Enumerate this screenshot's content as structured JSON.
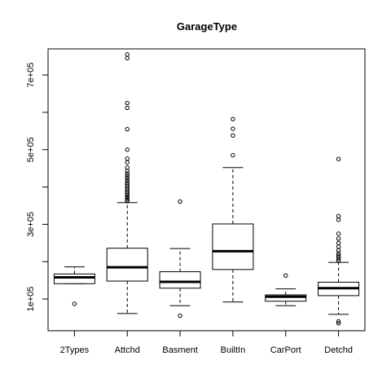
{
  "chart_data": {
    "type": "boxplot",
    "title": "GarageType",
    "xlabel": "",
    "ylabel": "",
    "ylim": [
      15000,
      770000
    ],
    "yticks": [
      {
        "value": 100000,
        "label": "1e+05"
      },
      {
        "value": 300000,
        "label": "3e+05"
      },
      {
        "value": 500000,
        "label": "5e+05"
      },
      {
        "value": 700000,
        "label": "7e+05"
      }
    ],
    "yminor_ticks": [
      200000,
      400000,
      600000
    ],
    "categories": [
      "2Types",
      "Attchd",
      "Basment",
      "BuiltIn",
      "CarPort",
      "Detchd"
    ],
    "boxes": [
      {
        "name": "2Types",
        "whisker_low": 141000,
        "q1": 141000,
        "median": 158000,
        "q3": 167000,
        "whisker_high": 186000,
        "outliers": [
          87000
        ]
      },
      {
        "name": "Attchd",
        "whisker_low": 61000,
        "q1": 148000,
        "median": 185000,
        "q3": 236000,
        "whisker_high": 358000,
        "outliers": [
          362000,
          366000,
          370000,
          374000,
          378000,
          382000,
          387000,
          392000,
          397000,
          402000,
          407000,
          412000,
          418000,
          424000,
          430000,
          436000,
          443000,
          452000,
          466000,
          476000,
          500000,
          555000,
          612000,
          625000,
          745000,
          755000
        ]
      },
      {
        "name": "Basment",
        "whisker_low": 82000,
        "q1": 129000,
        "median": 146000,
        "q3": 173000,
        "whisker_high": 235000,
        "outliers": [
          55000,
          361000
        ]
      },
      {
        "name": "BuiltIn",
        "whisker_low": 92000,
        "q1": 179000,
        "median": 228000,
        "q3": 301000,
        "whisker_high": 452000,
        "outliers": [
          485000,
          538000,
          556000,
          582000
        ]
      },
      {
        "name": "CarPort",
        "whisker_low": 82000,
        "q1": 94000,
        "median": 106000,
        "q3": 111000,
        "whisker_high": 127000,
        "outliers": [
          163000
        ]
      },
      {
        "name": "Detchd",
        "whisker_low": 59000,
        "q1": 109000,
        "median": 129000,
        "q3": 145000,
        "whisker_high": 198000,
        "outliers": [
          35000,
          40000,
          202000,
          207000,
          212000,
          217000,
          222000,
          230000,
          240000,
          250000,
          262000,
          275000,
          312000,
          322000,
          475000
        ]
      }
    ]
  }
}
